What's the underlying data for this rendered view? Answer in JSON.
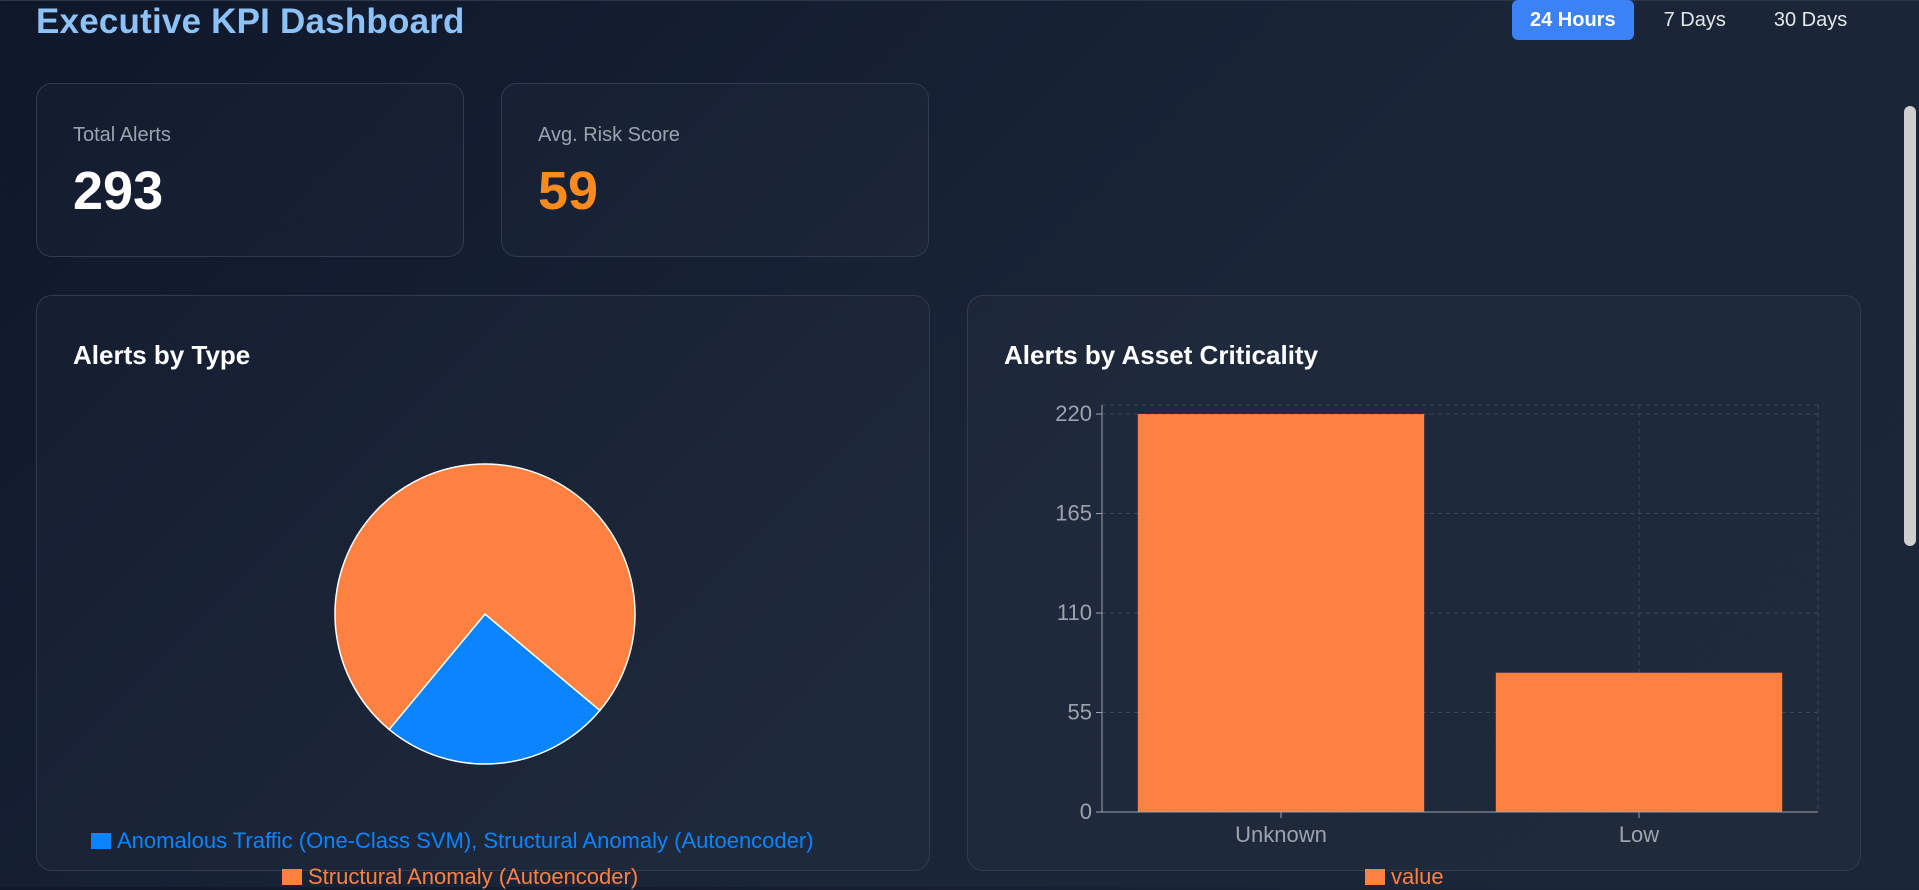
{
  "header": {
    "title": "Executive KPI Dashboard",
    "ranges": [
      {
        "label": "24 Hours",
        "active": true
      },
      {
        "label": "7 Days",
        "active": false
      },
      {
        "label": "30 Days",
        "active": false
      }
    ]
  },
  "kpis": [
    {
      "label": "Total Alerts",
      "value": "293",
      "color": "#ffffff"
    },
    {
      "label": "Avg. Risk Score",
      "value": "59",
      "color": "#fb8b1e"
    }
  ],
  "panels": {
    "alerts_by_type": {
      "title": "Alerts by Type"
    },
    "alerts_by_criticality": {
      "title": "Alerts by Asset Criticality"
    }
  },
  "colors": {
    "accent_blue": "#3b82f6",
    "pie_blue": "#0a84ff",
    "chart_orange": "#ff8142",
    "kpi_orange": "#fb8b1e"
  },
  "chart_data": [
    {
      "type": "pie",
      "labels": [
        "Anomalous Traffic (One-Class SVM), Structural Anomaly (Autoencoder)",
        "Structural Anomaly (Autoencoder)"
      ],
      "values": [
        73,
        220
      ],
      "legend_labels": [
        "Anomalous Traffic (One-Class SVM), Structural Anomaly (Autoencoder)",
        "Structural Anomaly (Autoencoder)"
      ],
      "legend_colors": [
        "#0a84ff",
        "#ff8142"
      ]
    },
    {
      "type": "bar",
      "categories": [
        "Unknown",
        "Low"
      ],
      "series": [
        {
          "name": "value",
          "values": [
            220,
            77
          ],
          "color": "#ff8142"
        }
      ],
      "y_ticks": [
        0,
        55,
        110,
        165,
        220
      ],
      "ylim": [
        0,
        225
      ],
      "legend_labels": [
        "value"
      ],
      "grid": true
    }
  ]
}
